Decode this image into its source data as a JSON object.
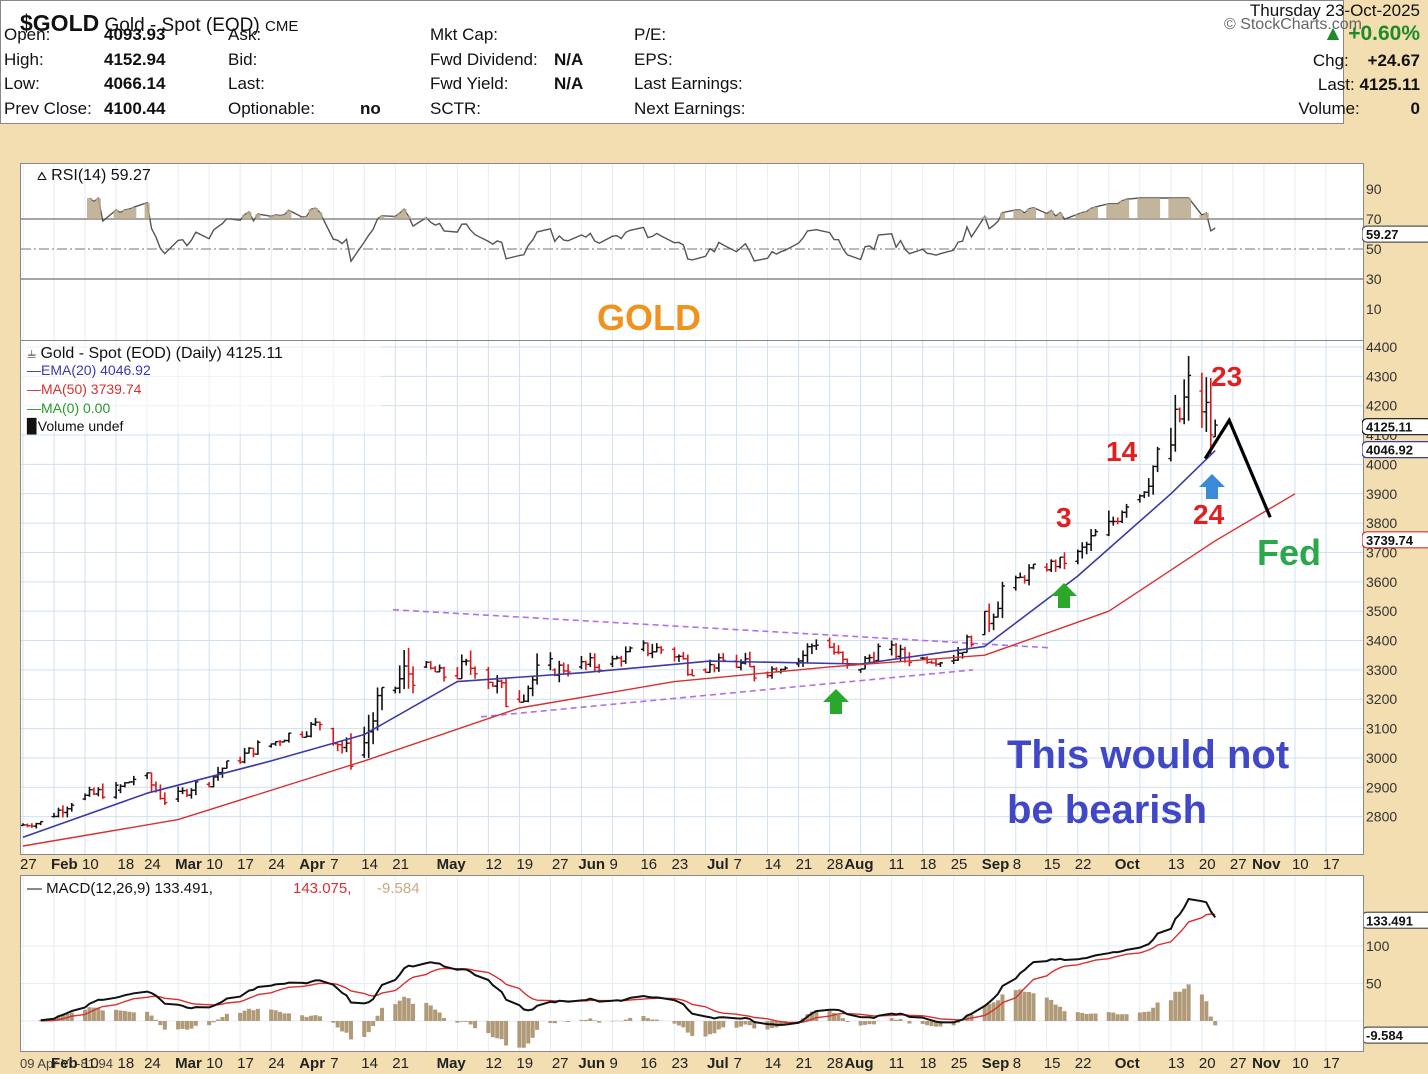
{
  "header": {
    "symbol": "$GOLD",
    "name": "Gold - Spot (EOD)",
    "exchange": "CME",
    "watermark": "© StockCharts.com",
    "date": "Thursday  23-Oct-2025"
  },
  "quote": {
    "col1": [
      {
        "label": "Open:",
        "value": "4093.93"
      },
      {
        "label": "High:",
        "value": "4152.94"
      },
      {
        "label": "Low:",
        "value": "4066.14"
      },
      {
        "label": "Prev Close:",
        "value": "4100.44"
      }
    ],
    "col2": [
      {
        "label": "Ask:",
        "value": ""
      },
      {
        "label": "Bid:",
        "value": ""
      },
      {
        "label": "Last:",
        "value": ""
      },
      {
        "label": "Optionable:",
        "value": "no"
      }
    ],
    "col3": [
      {
        "label": "Mkt Cap:",
        "value": ""
      },
      {
        "label": "Fwd Dividend:",
        "value": "N/A"
      },
      {
        "label": "Fwd Yield:",
        "value": "N/A"
      },
      {
        "label": "SCTR:",
        "value": ""
      }
    ],
    "col4": [
      {
        "label": "P/E:",
        "value": ""
      },
      {
        "label": "EPS:",
        "value": ""
      },
      {
        "label": "Last Earnings:",
        "value": ""
      },
      {
        "label": "Next Earnings:",
        "value": ""
      }
    ],
    "change_pct": "+0.60%",
    "chg_label": "Chg:",
    "chg_value": "+24.67",
    "last_label": "Last:",
    "last_value": "4125.11",
    "volume_label": "Volume:",
    "volume_value": "0"
  },
  "rsi": {
    "label": "RSI(14) 59.27",
    "current": "59.27",
    "ticks": [
      "90",
      "70",
      "50",
      "30",
      "10"
    ],
    "watermark_text": "GOLD"
  },
  "price_legend": {
    "title": "Gold - Spot (EOD) (Daily) 4125.11",
    "ema": "EMA(20) 4046.92",
    "ma50": "MA(50) 3739.74",
    "ma0": "MA(0) 0.00",
    "volume": "Volume undef"
  },
  "price_tags": {
    "last": "4125.11",
    "ema": "4046.92",
    "ma50": "3739.74"
  },
  "annotations": {
    "n23": "23",
    "n14": "14",
    "n3": "3",
    "n24": "24",
    "fed": "Fed",
    "note_line1": "This would not",
    "note_line2": "be bearish"
  },
  "x_axis": [
    "27",
    "Feb",
    "10",
    "18",
    "24",
    "Mar",
    "10",
    "17",
    "24",
    "Apr",
    "7",
    "14",
    "21",
    "May",
    "12",
    "19",
    "27",
    "Jun",
    "9",
    "16",
    "23",
    "Jul",
    "7",
    "14",
    "21",
    "28",
    "Aug",
    "11",
    "18",
    "25",
    "Sep",
    "8",
    "15",
    "22",
    "Oct",
    "13",
    "20",
    "27",
    "Nov",
    "10",
    "17"
  ],
  "bottom_axis_start": "09 Apr Y: -81.94",
  "macd": {
    "label_black": "MACD(12,26,9) 133.491,",
    "label_red": "143.075,",
    "label_hist": "-9.584",
    "tags": [
      "133.491",
      "-9.584"
    ],
    "ticks": [
      "100",
      "50"
    ]
  },
  "colors": {
    "ema": "#3a3aa8",
    "ma50": "#d83030",
    "up_bar": "#111111",
    "down_bar": "#d81818",
    "trend": "#b070e8",
    "arrow_green": "#2aa82a",
    "arrow_blue": "#3a8ad8",
    "fed": "#2aa84a",
    "note": "#4048c8",
    "gold_label": "#f0921e"
  },
  "chart_data": {
    "type": "line",
    "title": "Gold - Spot (EOD) (Daily) 4125.11",
    "y_range": [
      2700,
      4400
    ],
    "y_ticks": [
      4400,
      4300,
      4200,
      4100,
      4000,
      3900,
      3800,
      3700,
      3600,
      3500,
      3400,
      3300,
      3200,
      3100,
      3000,
      2900,
      2800
    ],
    "x_range": [
      "2025-01-27",
      "2025-11-17"
    ],
    "series": [
      {
        "name": "Gold - Spot (EOD)",
        "type": "ohlc",
        "values": [
          {
            "x": "2025-01-27",
            "o": 2770,
            "h": 2790,
            "l": 2750,
            "c": 2780
          },
          {
            "x": "2025-02-03",
            "o": 2800,
            "h": 2860,
            "l": 2790,
            "c": 2850
          },
          {
            "x": "2025-02-10",
            "o": 2860,
            "h": 2940,
            "l": 2850,
            "c": 2890
          },
          {
            "x": "2025-02-18",
            "o": 2890,
            "h": 2950,
            "l": 2880,
            "c": 2930
          },
          {
            "x": "2025-02-24",
            "o": 2940,
            "h": 2950,
            "l": 2840,
            "c": 2860
          },
          {
            "x": "2025-03-03",
            "o": 2860,
            "h": 2920,
            "l": 2850,
            "c": 2910
          },
          {
            "x": "2025-03-10",
            "o": 2910,
            "h": 2990,
            "l": 2900,
            "c": 2980
          },
          {
            "x": "2025-03-17",
            "o": 2990,
            "h": 3060,
            "l": 2980,
            "c": 3040
          },
          {
            "x": "2025-03-24",
            "o": 3040,
            "h": 3090,
            "l": 3020,
            "c": 3080
          },
          {
            "x": "2025-03-31",
            "o": 3080,
            "h": 3160,
            "l": 3070,
            "c": 3120
          },
          {
            "x": "2025-04-07",
            "o": 3100,
            "h": 3110,
            "l": 2960,
            "c": 3000
          },
          {
            "x": "2025-04-14",
            "o": 3010,
            "h": 3240,
            "l": 3000,
            "c": 3220
          },
          {
            "x": "2025-04-21",
            "o": 3230,
            "h": 3500,
            "l": 3220,
            "c": 3310
          },
          {
            "x": "2025-04-28",
            "o": 3310,
            "h": 3330,
            "l": 3240,
            "c": 3280
          },
          {
            "x": "2025-05-05",
            "o": 3280,
            "h": 3430,
            "l": 3270,
            "c": 3320
          },
          {
            "x": "2025-05-12",
            "o": 3300,
            "h": 3310,
            "l": 3130,
            "c": 3200
          },
          {
            "x": "2025-05-19",
            "o": 3200,
            "h": 3360,
            "l": 3190,
            "c": 3300
          },
          {
            "x": "2025-05-27",
            "o": 3300,
            "h": 3350,
            "l": 3250,
            "c": 3310
          },
          {
            "x": "2025-06-02",
            "o": 3310,
            "h": 3400,
            "l": 3290,
            "c": 3320
          },
          {
            "x": "2025-06-09",
            "o": 3320,
            "h": 3380,
            "l": 3300,
            "c": 3360
          },
          {
            "x": "2025-06-16",
            "o": 3370,
            "h": 3450,
            "l": 3340,
            "c": 3370
          },
          {
            "x": "2025-06-23",
            "o": 3370,
            "h": 3400,
            "l": 3280,
            "c": 3300
          },
          {
            "x": "2025-06-30",
            "o": 3300,
            "h": 3360,
            "l": 3290,
            "c": 3330
          },
          {
            "x": "2025-07-07",
            "o": 3330,
            "h": 3370,
            "l": 3230,
            "c": 3290
          },
          {
            "x": "2025-07-14",
            "o": 3290,
            "h": 3340,
            "l": 3270,
            "c": 3320
          },
          {
            "x": "2025-07-21",
            "o": 3320,
            "h": 3440,
            "l": 3310,
            "c": 3400
          },
          {
            "x": "2025-07-28",
            "o": 3400,
            "h": 3410,
            "l": 3270,
            "c": 3300
          },
          {
            "x": "2025-08-04",
            "o": 3300,
            "h": 3390,
            "l": 3290,
            "c": 3370
          },
          {
            "x": "2025-08-11",
            "o": 3370,
            "h": 3400,
            "l": 3310,
            "c": 3340
          },
          {
            "x": "2025-08-18",
            "o": 3340,
            "h": 3360,
            "l": 3310,
            "c": 3330
          },
          {
            "x": "2025-08-25",
            "o": 3330,
            "h": 3420,
            "l": 3320,
            "c": 3410
          },
          {
            "x": "2025-09-01",
            "o": 3420,
            "h": 3600,
            "l": 3410,
            "c": 3580
          },
          {
            "x": "2025-09-08",
            "o": 3580,
            "h": 3660,
            "l": 3570,
            "c": 3650
          },
          {
            "x": "2025-09-15",
            "o": 3650,
            "h": 3710,
            "l": 3630,
            "c": 3670
          },
          {
            "x": "2025-09-22",
            "o": 3670,
            "h": 3780,
            "l": 3660,
            "c": 3760
          },
          {
            "x": "2025-09-29",
            "o": 3760,
            "h": 3890,
            "l": 3740,
            "c": 3880
          },
          {
            "x": "2025-10-06",
            "o": 3880,
            "h": 4060,
            "l": 3870,
            "c": 4020
          },
          {
            "x": "2025-10-13",
            "o": 4020,
            "h": 4380,
            "l": 4010,
            "c": 4250
          },
          {
            "x": "2025-10-20",
            "o": 4250,
            "h": 4380,
            "l": 4000,
            "c": 4120
          },
          {
            "x": "2025-10-23",
            "o": 4093.93,
            "h": 4152.94,
            "l": 4066.14,
            "c": 4125.11
          }
        ]
      },
      {
        "name": "EMA(20)",
        "values": [
          {
            "x": "2025-01-27",
            "y": 2730
          },
          {
            "x": "2025-02-24",
            "y": 2880
          },
          {
            "x": "2025-03-24",
            "y": 2990
          },
          {
            "x": "2025-04-14",
            "y": 3080
          },
          {
            "x": "2025-05-05",
            "y": 3260
          },
          {
            "x": "2025-06-02",
            "y": 3290
          },
          {
            "x": "2025-07-01",
            "y": 3330
          },
          {
            "x": "2025-08-04",
            "y": 3320
          },
          {
            "x": "2025-09-01",
            "y": 3380
          },
          {
            "x": "2025-09-22",
            "y": 3620
          },
          {
            "x": "2025-10-13",
            "y": 3900
          },
          {
            "x": "2025-10-23",
            "y": 4046.92
          }
        ]
      },
      {
        "name": "MA(50)",
        "values": [
          {
            "x": "2025-01-27",
            "y": 2700
          },
          {
            "x": "2025-03-03",
            "y": 2790
          },
          {
            "x": "2025-04-14",
            "y": 2990
          },
          {
            "x": "2025-05-19",
            "y": 3170
          },
          {
            "x": "2025-06-23",
            "y": 3260
          },
          {
            "x": "2025-07-28",
            "y": 3310
          },
          {
            "x": "2025-09-01",
            "y": 3350
          },
          {
            "x": "2025-09-29",
            "y": 3500
          },
          {
            "x": "2025-10-23",
            "y": 3739.74
          },
          {
            "x": "2025-11-10",
            "y": 3900
          }
        ]
      }
    ]
  }
}
